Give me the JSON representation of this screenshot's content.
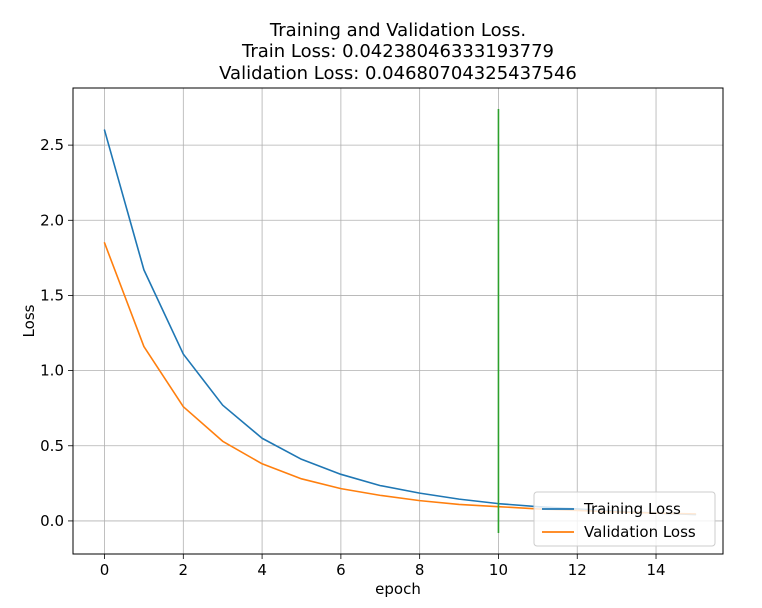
{
  "chart_data": {
    "type": "line",
    "title_lines": [
      "Training and Validation Loss.",
      "Train Loss: 0.04238046333193779",
      "Validation Loss: 0.04680704325437546"
    ],
    "xlabel": "epoch",
    "ylabel": "Loss",
    "xlim": [
      -0.8,
      15.7
    ],
    "ylim": [
      -0.22,
      2.88
    ],
    "x_ticks": [
      0,
      2,
      4,
      6,
      8,
      10,
      12,
      14
    ],
    "y_ticks": [
      0.0,
      0.5,
      1.0,
      1.5,
      2.0,
      2.5
    ],
    "y_tick_labels": [
      "0.0",
      "0.5",
      "1.0",
      "1.5",
      "2.0",
      "2.5"
    ],
    "grid": true,
    "legend_position": "lower right",
    "x": [
      0,
      1,
      2,
      3,
      4,
      5,
      6,
      7,
      8,
      9,
      10,
      11,
      12,
      13,
      14,
      15
    ],
    "series": [
      {
        "name": "Training Loss",
        "color": "#1f77b4",
        "values": [
          2.6,
          1.67,
          1.11,
          0.77,
          0.55,
          0.41,
          0.31,
          0.235,
          0.185,
          0.145,
          0.115,
          0.095,
          0.08,
          0.065,
          0.052,
          0.042
        ]
      },
      {
        "name": "Validation Loss",
        "color": "#ff7f0e",
        "values": [
          1.85,
          1.16,
          0.76,
          0.53,
          0.38,
          0.28,
          0.215,
          0.17,
          0.135,
          0.11,
          0.095,
          0.08,
          0.07,
          0.06,
          0.052,
          0.047
        ]
      }
    ],
    "vertical_line": {
      "x": 10,
      "y_range": [
        -0.08,
        2.74
      ],
      "color": "#2ca02c"
    }
  }
}
